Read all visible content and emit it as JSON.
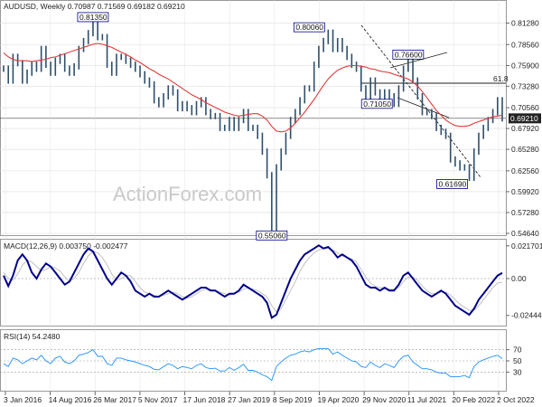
{
  "colors": {
    "price": "#2f4f6b",
    "ma": "#e03a3a",
    "macd": "#00008b",
    "signal": "#c0c0c0",
    "rsi": "#1e90ff",
    "grid": "#dddddd",
    "level_line": "#222222",
    "current_box": "#ffffff"
  },
  "chart_data": [
    {
      "type": "line",
      "title": "AUDUSD, Weekly  0.70987 0.71569 0.69182 0.69210",
      "series": [
        {
          "values": [
            0.755,
            0.74,
            0.77,
            0.762,
            0.74,
            0.75,
            0.76,
            0.755,
            0.78,
            0.76,
            0.75,
            0.765,
            0.77,
            0.755,
            0.75,
            0.758,
            0.78,
            0.79,
            0.8,
            0.8135,
            0.795,
            0.795,
            0.76,
            0.75,
            0.77,
            0.77,
            0.765,
            0.76,
            0.755,
            0.748,
            0.74,
            0.735,
            0.715,
            0.71,
            0.72,
            0.73,
            0.725,
            0.705,
            0.71,
            0.705,
            0.7,
            0.71,
            0.715,
            0.7,
            0.695,
            0.695,
            0.68,
            0.68,
            0.69,
            0.68,
            0.69,
            0.7,
            0.68,
            0.68,
            0.67,
            0.65,
            0.62,
            0.5506,
            0.63,
            0.65,
            0.67,
            0.69,
            0.7,
            0.715,
            0.73,
            0.73,
            0.76,
            0.78,
            0.79,
            0.8006,
            0.78,
            0.79,
            0.78,
            0.77,
            0.76,
            0.755,
            0.73,
            0.72,
            0.74,
            0.725,
            0.716,
            0.725,
            0.72,
            0.7105,
            0.73,
            0.755,
            0.766,
            0.74,
            0.72,
            0.7,
            0.7,
            0.695,
            0.68,
            0.675,
            0.67,
            0.64,
            0.635,
            0.63,
            0.63,
            0.6169,
            0.65,
            0.67,
            0.68,
            0.69,
            0.7,
            0.715,
            0.6921
          ]
        }
      ],
      "moving_average": [
        0.775,
        0.77,
        0.767,
        0.765,
        0.765,
        0.765,
        0.764,
        0.765,
        0.766,
        0.767,
        0.769,
        0.77,
        0.772,
        0.774,
        0.776,
        0.778,
        0.78,
        0.782,
        0.784,
        0.786,
        0.787,
        0.786,
        0.784,
        0.782,
        0.779,
        0.776,
        0.773,
        0.77,
        0.766,
        0.763,
        0.759,
        0.755,
        0.752,
        0.748,
        0.745,
        0.742,
        0.738,
        0.734,
        0.73,
        0.726,
        0.722,
        0.719,
        0.716,
        0.712,
        0.709,
        0.706,
        0.703,
        0.7,
        0.698,
        0.696,
        0.695,
        0.696,
        0.697,
        0.698,
        0.698,
        0.695,
        0.69,
        0.682,
        0.676,
        0.675,
        0.676,
        0.68,
        0.686,
        0.693,
        0.7,
        0.708,
        0.716,
        0.725,
        0.734,
        0.742,
        0.748,
        0.753,
        0.756,
        0.758,
        0.759,
        0.759,
        0.758,
        0.757,
        0.755,
        0.754,
        0.752,
        0.751,
        0.75,
        0.748,
        0.746,
        0.744,
        0.742,
        0.738,
        0.733,
        0.726,
        0.718,
        0.71,
        0.702,
        0.696,
        0.69,
        0.686,
        0.683,
        0.682,
        0.682,
        0.683,
        0.686,
        0.688,
        0.69,
        0.692,
        0.694,
        0.695,
        0.696
      ],
      "ylim": [
        0.5464,
        0.826
      ],
      "y_ticks": [
        "0.81280",
        "0.78560",
        "0.75900",
        "0.73280",
        "0.70560",
        "0.67920",
        "0.65280",
        "0.62560",
        "0.59920",
        "0.57280",
        "0.54640"
      ],
      "y_tick_values": [
        0.8128,
        0.7856,
        0.759,
        0.7328,
        0.7056,
        0.6792,
        0.6528,
        0.6256,
        0.5992,
        0.5728,
        0.5464
      ],
      "current_value": "0.69210",
      "current_value_num": 0.6921,
      "level_label": "61.8",
      "level_value": 0.7348,
      "annotations": [
        {
          "text": "0.81350",
          "value": 0.8135,
          "at": 19
        },
        {
          "text": "0.55060",
          "value": 0.5506,
          "at": 57
        },
        {
          "text": "0.80060",
          "value": 0.8006,
          "at": 69
        },
        {
          "text": "0.76600",
          "value": 0.766,
          "at": 86
        },
        {
          "text": "0.71050",
          "value": 0.7105,
          "at": 83
        },
        {
          "text": "0.61690",
          "value": 0.6169,
          "at": 99
        }
      ],
      "watermark": "ActionForex.com"
    },
    {
      "type": "line",
      "title": "MACD(12,26,9) 0.003750 -0.002477",
      "ylim": [
        -0.03,
        0.024
      ],
      "y_ticks": [
        "0.021701",
        "0.00",
        "-0.024445"
      ],
      "y_tick_values": [
        0.021701,
        0.0,
        -0.024445
      ],
      "series": [
        {
          "values": [
            0.002,
            -0.005,
            0.002,
            0.012,
            0.016,
            0.012,
            0.004,
            0.0,
            0.006,
            0.01,
            0.008,
            0.004,
            0.0,
            -0.004,
            -0.002,
            0.004,
            0.01,
            0.016,
            0.02,
            0.018,
            0.012,
            0.006,
            0.0,
            -0.004,
            0.0,
            0.004,
            0.002,
            -0.002,
            -0.008,
            -0.01,
            -0.012,
            -0.01,
            -0.012,
            -0.012,
            -0.01,
            -0.008,
            -0.01,
            -0.012,
            -0.014,
            -0.012,
            -0.01,
            -0.008,
            -0.006,
            -0.006,
            -0.008,
            -0.008,
            -0.01,
            -0.012,
            -0.01,
            -0.01,
            -0.008,
            -0.004,
            -0.006,
            -0.008,
            -0.01,
            -0.012,
            -0.016,
            -0.026,
            -0.024,
            -0.016,
            -0.008,
            0.0,
            0.006,
            0.012,
            0.016,
            0.018,
            0.02,
            0.022,
            0.02,
            0.021,
            0.018,
            0.014,
            0.016,
            0.014,
            0.012,
            0.008,
            0.002,
            -0.004,
            -0.006,
            -0.006,
            -0.008,
            -0.006,
            -0.008,
            -0.008,
            -0.004,
            0.002,
            0.004,
            0.0,
            -0.004,
            -0.008,
            -0.01,
            -0.012,
            -0.01,
            -0.008,
            -0.01,
            -0.014,
            -0.018,
            -0.02,
            -0.022,
            -0.024,
            -0.02,
            -0.014,
            -0.01,
            -0.006,
            -0.002,
            0.002,
            0.00375
          ]
        },
        {
          "values": [
            0.004,
            0.0,
            -0.001,
            0.003,
            0.009,
            0.012,
            0.011,
            0.008,
            0.005,
            0.006,
            0.008,
            0.007,
            0.005,
            0.001,
            -0.002,
            0.0,
            0.004,
            0.01,
            0.015,
            0.018,
            0.017,
            0.014,
            0.009,
            0.003,
            -0.001,
            0.0,
            0.002,
            0.002,
            -0.002,
            -0.006,
            -0.009,
            -0.01,
            -0.011,
            -0.012,
            -0.011,
            -0.01,
            -0.009,
            -0.01,
            -0.012,
            -0.013,
            -0.012,
            -0.01,
            -0.008,
            -0.007,
            -0.007,
            -0.008,
            -0.009,
            -0.01,
            -0.011,
            -0.01,
            -0.009,
            -0.007,
            -0.006,
            -0.007,
            -0.008,
            -0.01,
            -0.012,
            -0.018,
            -0.022,
            -0.02,
            -0.014,
            -0.008,
            -0.002,
            0.005,
            0.01,
            0.014,
            0.017,
            0.019,
            0.02,
            0.02,
            0.019,
            0.017,
            0.015,
            0.014,
            0.013,
            0.011,
            0.006,
            0.001,
            -0.003,
            -0.005,
            -0.006,
            -0.006,
            -0.007,
            -0.007,
            -0.006,
            -0.002,
            0.001,
            0.001,
            -0.001,
            -0.005,
            -0.008,
            -0.01,
            -0.01,
            -0.009,
            -0.009,
            -0.011,
            -0.014,
            -0.017,
            -0.019,
            -0.021,
            -0.021,
            -0.018,
            -0.014,
            -0.01,
            -0.006,
            -0.003,
            -0.002477
          ]
        }
      ]
    },
    {
      "type": "line",
      "title": "RSI(14) 54.2480",
      "ylim": [
        0,
        100
      ],
      "y_ticks": [
        "70",
        "50",
        "30"
      ],
      "y_tick_values": [
        70,
        50,
        30
      ],
      "series": [
        {
          "values": [
            45,
            40,
            55,
            52,
            45,
            50,
            55,
            52,
            60,
            50,
            45,
            55,
            58,
            48,
            45,
            50,
            60,
            62,
            65,
            70,
            58,
            58,
            45,
            42,
            55,
            55,
            52,
            50,
            48,
            45,
            42,
            40,
            35,
            34,
            40,
            45,
            42,
            36,
            40,
            38,
            36,
            42,
            45,
            38,
            36,
            37,
            32,
            32,
            38,
            33,
            38,
            44,
            33,
            33,
            30,
            25,
            22,
            15,
            40,
            48,
            55,
            60,
            62,
            66,
            68,
            66,
            70,
            72,
            72,
            72,
            62,
            66,
            60,
            55,
            50,
            48,
            40,
            38,
            48,
            42,
            38,
            45,
            42,
            38,
            50,
            58,
            60,
            48,
            42,
            36,
            36,
            34,
            30,
            28,
            28,
            22,
            22,
            22,
            24,
            20,
            40,
            48,
            52,
            55,
            58,
            60,
            54
          ]
        }
      ]
    }
  ],
  "x_axis": {
    "labels": [
      "3 Jan 2016",
      "14 Aug 2016",
      "26 Mar 2017",
      "5 Nov 2017",
      "17 Jun 2018",
      "27 Jan 2019",
      "8 Sep 2019",
      "19 Apr 2020",
      "29 Nov 2020",
      "11 Jul 2021",
      "20 Feb 2022",
      "2 Oct 2022"
    ]
  }
}
